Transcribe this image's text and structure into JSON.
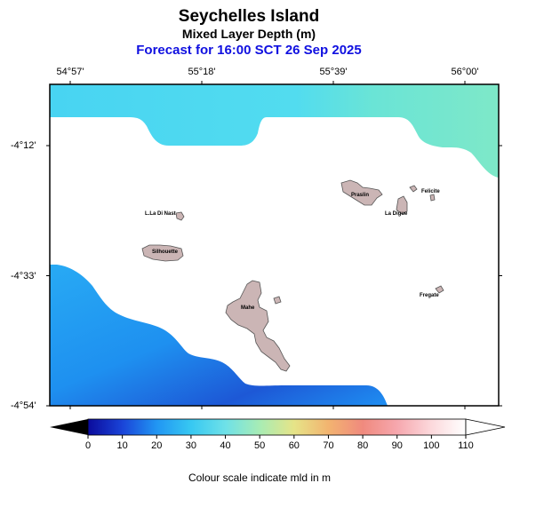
{
  "header": {
    "title": "Seychelles Island",
    "subtitle": "Mixed Layer Depth (m)",
    "forecast": "Forecast for  16:00 SCT 26 Sep 2025"
  },
  "map": {
    "lon_ticks": [
      {
        "label": "54°57'",
        "lon": 54.95
      },
      {
        "label": "55°18'",
        "lon": 55.3
      },
      {
        "label": "55°39'",
        "lon": 55.65
      },
      {
        "label": "56°00'",
        "lon": 56.0
      }
    ],
    "lat_ticks": [
      {
        "label": "-4°12'",
        "lat": -4.2
      },
      {
        "label": "-4°33'",
        "lat": -4.55
      },
      {
        "label": "-4°54'",
        "lat": -4.9
      }
    ],
    "islands": [
      {
        "name": "L.La Di Nast",
        "kind": "small-islet"
      },
      {
        "name": "Silhouette",
        "kind": "island"
      },
      {
        "name": "Praslin",
        "kind": "island"
      },
      {
        "name": "Felicite",
        "kind": "small-islet"
      },
      {
        "name": "La Digue",
        "kind": "island"
      },
      {
        "name": "Fregate",
        "kind": "small-islet"
      },
      {
        "name": "Mahe",
        "kind": "island"
      }
    ],
    "regions": [
      {
        "name": "north-band",
        "mld_range_m": [
          40,
          50
        ],
        "colors": [
          "#48d4f2",
          "#7ee8c8"
        ]
      },
      {
        "name": "southwest-deep",
        "mld_range_m": [
          15,
          30
        ],
        "colors": [
          "#1ea2f4",
          "#1a52cc"
        ]
      }
    ]
  },
  "colorbar": {
    "ticks": [
      "0",
      "10",
      "20",
      "30",
      "40",
      "50",
      "60",
      "70",
      "80",
      "90",
      "100",
      "110"
    ],
    "min": 0,
    "max": 110,
    "colors": [
      "#0b0b9c",
      "#1a44d8",
      "#2196f3",
      "#37c8f2",
      "#6ee1e8",
      "#a8ecb4",
      "#e6e488",
      "#f2b470",
      "#f08a7e",
      "#f6a7ae",
      "#fcd9dc",
      "#ffffff"
    ],
    "caption": "Colour scale indicate mld in m"
  }
}
